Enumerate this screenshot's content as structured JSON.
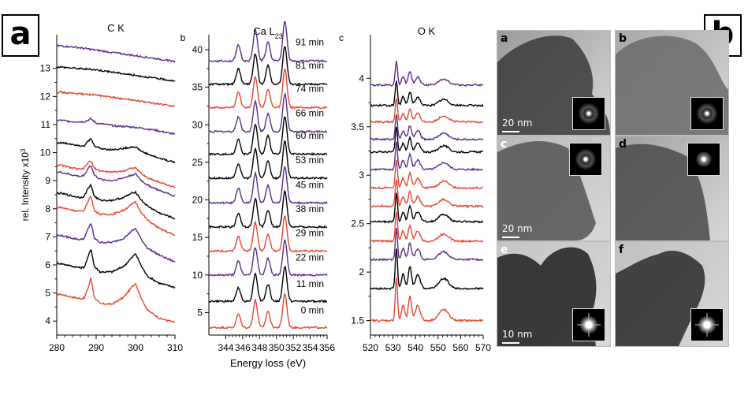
{
  "labels": {
    "panel_a": "a",
    "panel_b": "b"
  },
  "chart_data": [
    {
      "type": "line",
      "subpanel": "",
      "title": "C K",
      "xlabel": "",
      "ylabel": "rel. Intensity x10",
      "ylabel_sup": "3",
      "xlim": [
        280,
        310
      ],
      "ylim": [
        3.5,
        14.2
      ],
      "xticks": [
        280,
        290,
        300,
        310
      ],
      "yticks": [
        4,
        5,
        6,
        7,
        8,
        9,
        10,
        11,
        12,
        13
      ],
      "grid": false,
      "series": [
        {
          "color": "#e8472f",
          "x": [
            281,
            284,
            286,
            287,
            288,
            288.7,
            289.5,
            291,
            294,
            297,
            299,
            300,
            301.5,
            303,
            306,
            310
          ],
          "y": [
            4.95,
            4.85,
            4.8,
            4.82,
            5.2,
            5.55,
            4.85,
            4.62,
            4.6,
            4.85,
            5.2,
            5.35,
            4.8,
            4.4,
            4.1,
            3.95
          ]
        },
        {
          "color": "#000000",
          "x": [
            281,
            284,
            286,
            287,
            288,
            288.7,
            289.5,
            291,
            294,
            297,
            299,
            300,
            301.5,
            303,
            306,
            310
          ],
          "y": [
            6.05,
            5.95,
            5.9,
            5.92,
            6.3,
            6.6,
            5.95,
            5.75,
            5.75,
            5.95,
            6.25,
            6.4,
            5.95,
            5.6,
            5.35,
            5.2
          ]
        },
        {
          "color": "#5b2d8c",
          "x": [
            281,
            284,
            286,
            287,
            288,
            288.7,
            289.5,
            291,
            294,
            297,
            299,
            300,
            301.5,
            303,
            306,
            310
          ],
          "y": [
            7.05,
            6.95,
            6.9,
            6.95,
            7.3,
            7.5,
            6.95,
            6.8,
            6.8,
            6.95,
            7.2,
            7.3,
            6.9,
            6.6,
            6.35,
            6.1
          ]
        },
        {
          "color": "#e8472f",
          "x": [
            281,
            284,
            286,
            287,
            288,
            288.7,
            289.5,
            291,
            294,
            297,
            299,
            300,
            301.5,
            303,
            306,
            310
          ],
          "y": [
            8.05,
            7.95,
            7.9,
            7.95,
            8.3,
            8.45,
            7.95,
            7.8,
            7.8,
            7.95,
            8.15,
            8.25,
            7.85,
            7.6,
            7.3,
            7.05
          ]
        },
        {
          "color": "#000000",
          "x": [
            281,
            284,
            286,
            287,
            288,
            288.7,
            289.5,
            291,
            294,
            297,
            299,
            300,
            301.5,
            303,
            306,
            310
          ],
          "y": [
            8.55,
            8.45,
            8.4,
            8.45,
            8.75,
            8.85,
            8.45,
            8.3,
            8.3,
            8.4,
            8.55,
            8.6,
            8.3,
            8.1,
            7.85,
            7.65
          ]
        },
        {
          "color": "#5b2d8c",
          "x": [
            281,
            284,
            286,
            287,
            288,
            288.7,
            289.5,
            291,
            294,
            297,
            299,
            300,
            301.5,
            303,
            306,
            310
          ],
          "y": [
            9.3,
            9.2,
            9.15,
            9.2,
            9.45,
            9.55,
            9.2,
            9.05,
            9.0,
            9.1,
            9.2,
            9.25,
            9.0,
            8.85,
            8.65,
            8.45
          ]
        },
        {
          "color": "#e8472f",
          "x": [
            281,
            284,
            286,
            287,
            288,
            288.7,
            289.5,
            291,
            294,
            297,
            299,
            300,
            301.5,
            303,
            306,
            310
          ],
          "y": [
            9.55,
            9.45,
            9.4,
            9.45,
            9.65,
            9.7,
            9.45,
            9.35,
            9.3,
            9.35,
            9.45,
            9.45,
            9.25,
            9.1,
            8.95,
            8.75
          ]
        },
        {
          "color": "#000000",
          "x": [
            281,
            284,
            286,
            287,
            288,
            288.7,
            289.5,
            291,
            294,
            297,
            299,
            300,
            301.5,
            303,
            306,
            310
          ],
          "y": [
            10.35,
            10.3,
            10.25,
            10.25,
            10.4,
            10.5,
            10.25,
            10.15,
            10.1,
            10.15,
            10.2,
            10.2,
            10.05,
            9.95,
            9.8,
            9.65
          ]
        },
        {
          "color": "#5b2d8c",
          "x": [
            281,
            284,
            287,
            288.7,
            290,
            295,
            300,
            305,
            310
          ],
          "y": [
            11.15,
            11.1,
            11.1,
            11.2,
            11.05,
            10.95,
            10.9,
            10.8,
            10.65
          ]
        },
        {
          "color": "#e8472f",
          "x": [
            281,
            285,
            290,
            295,
            300,
            305,
            310
          ],
          "y": [
            12.15,
            12.1,
            12.05,
            11.95,
            11.85,
            11.75,
            11.65
          ]
        },
        {
          "color": "#000000",
          "x": [
            281,
            285,
            290,
            295,
            300,
            305,
            310
          ],
          "y": [
            13.05,
            13.0,
            12.95,
            12.85,
            12.75,
            12.65,
            12.55
          ]
        },
        {
          "color": "#5b2d8c",
          "x": [
            281,
            285,
            290,
            295,
            300,
            305,
            310
          ],
          "y": [
            13.8,
            13.75,
            13.65,
            13.55,
            13.45,
            13.35,
            13.25
          ]
        }
      ]
    },
    {
      "type": "line",
      "subpanel": "b",
      "title": "Ca L",
      "title_sub": "23",
      "xlabel": "Energy loss (eV)",
      "ylabel": "",
      "xlim": [
        342,
        356
      ],
      "ylim": [
        2,
        42
      ],
      "xticks": [
        344,
        346,
        348,
        350,
        352,
        354,
        356
      ],
      "yticks": [
        5,
        10,
        15,
        20,
        25,
        30,
        35,
        40
      ],
      "grid": false,
      "peaks": [
        {
          "x": 345.5,
          "w": 0.35,
          "a": 0.5
        },
        {
          "x": 347.5,
          "w": 0.35,
          "a": 1.0
        },
        {
          "x": 349.0,
          "w": 0.35,
          "a": 0.6
        },
        {
          "x": 351.0,
          "w": 0.35,
          "a": 1.25
        }
      ],
      "series": [
        {
          "color": "#e8472f",
          "label": "0 min",
          "baseline": 3.0,
          "amplitude": 3.6
        },
        {
          "color": "#000000",
          "label": "11 min",
          "baseline": 6.5,
          "amplitude": 3.7
        },
        {
          "color": "#5b2d8c",
          "label": "22 min",
          "baseline": 10.0,
          "amplitude": 3.7
        },
        {
          "color": "#e8472f",
          "label": "29 min",
          "baseline": 13.2,
          "amplitude": 3.8
        },
        {
          "color": "#000000",
          "label": "38 min",
          "baseline": 16.4,
          "amplitude": 3.8
        },
        {
          "color": "#5b2d8c",
          "label": "45 min",
          "baseline": 19.6,
          "amplitude": 3.9
        },
        {
          "color": "#000000",
          "label": "53 min",
          "baseline": 22.9,
          "amplitude": 3.9
        },
        {
          "color": "#000000",
          "label": "60 min",
          "baseline": 26.1,
          "amplitude": 4.0
        },
        {
          "color": "#5b2d8c",
          "label": "66 min",
          "baseline": 29.1,
          "amplitude": 4.0
        },
        {
          "color": "#e8472f",
          "label": "74 min",
          "baseline": 32.3,
          "amplitude": 4.1
        },
        {
          "color": "#000000",
          "label": "81 min",
          "baseline": 35.4,
          "amplitude": 4.1
        },
        {
          "color": "#5b2d8c",
          "label": "91 min",
          "baseline": 38.5,
          "amplitude": 4.2
        }
      ]
    },
    {
      "type": "line",
      "subpanel": "c",
      "title": "O K",
      "xlabel": "",
      "ylabel": "",
      "xlim": [
        520,
        570
      ],
      "ylim": [
        1.35,
        4.45
      ],
      "xticks": [
        520,
        530,
        540,
        550,
        560,
        570
      ],
      "yticks": [
        1.5,
        2.0,
        2.5,
        3.0,
        3.5,
        4.0
      ],
      "grid": false,
      "peaks": [
        {
          "x": 531.5,
          "w": 0.7,
          "a": 1.0
        },
        {
          "x": 534.5,
          "w": 1.0,
          "a": 0.35
        },
        {
          "x": 537.5,
          "w": 1.0,
          "a": 0.55
        },
        {
          "x": 541.0,
          "w": 1.5,
          "a": 0.35
        },
        {
          "x": 552.5,
          "w": 3.0,
          "a": 0.25
        }
      ],
      "series": [
        {
          "color": "#e8472f",
          "baseline": 1.5,
          "amplitude": 0.45
        },
        {
          "color": "#000000",
          "baseline": 1.83,
          "amplitude": 0.42
        },
        {
          "color": "#5b2d8c",
          "baseline": 2.13,
          "amplitude": 0.32
        },
        {
          "color": "#e8472f",
          "baseline": 2.32,
          "amplitude": 0.3
        },
        {
          "color": "#000000",
          "baseline": 2.52,
          "amplitude": 0.3
        },
        {
          "color": "#e8472f",
          "baseline": 2.68,
          "amplitude": 0.28
        },
        {
          "color": "#e8472f",
          "baseline": 2.87,
          "amplitude": 0.28
        },
        {
          "color": "#5b2d8c",
          "baseline": 3.06,
          "amplitude": 0.28
        },
        {
          "color": "#000000",
          "baseline": 3.24,
          "amplitude": 0.26
        },
        {
          "color": "#5b2d8c",
          "baseline": 3.37,
          "amplitude": 0.26
        },
        {
          "color": "#e8472f",
          "baseline": 3.55,
          "amplitude": 0.25
        },
        {
          "color": "#000000",
          "baseline": 3.72,
          "amplitude": 0.25
        },
        {
          "color": "#5b2d8c",
          "baseline": 3.93,
          "amplitude": 0.25
        }
      ]
    }
  ],
  "tem_images": [
    {
      "label": "a",
      "scale": "20 nm",
      "tone": "#9a9a9a",
      "object": "#3a3a3a",
      "inset": "ring",
      "inset_pos": "bottom-right"
    },
    {
      "label": "b",
      "scale": "",
      "tone": "#a8a8a8",
      "object": "#6a6a6a",
      "inset": "ring",
      "inset_pos": "bottom-right"
    },
    {
      "label": "c",
      "scale": "20 nm",
      "tone": "#b8b8b8",
      "object": "#555555",
      "inset": "ring",
      "inset_pos": "top-right"
    },
    {
      "label": "d",
      "scale": "",
      "tone": "#a0a0a0",
      "object": "#4a4a4a",
      "inset": "dot",
      "inset_pos": "top-right"
    },
    {
      "label": "e",
      "scale": "10 nm",
      "tone": "#c4c4c4",
      "object": "#1e1e1e",
      "inset": "star",
      "inset_pos": "bottom-right"
    },
    {
      "label": "f",
      "scale": "",
      "tone": "#c0c0c0",
      "object": "#2a2a2a",
      "inset": "star",
      "inset_pos": "bottom-right"
    }
  ]
}
